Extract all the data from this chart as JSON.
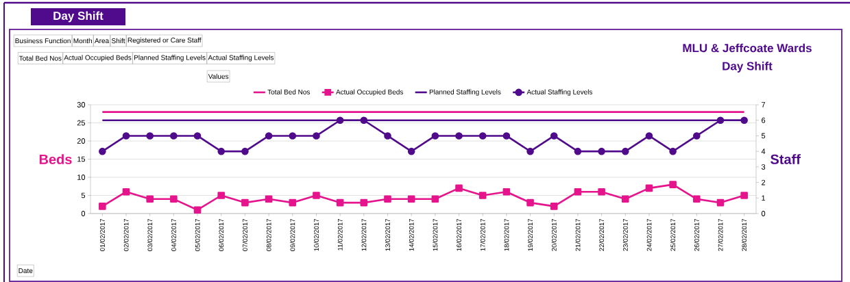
{
  "chart_data": {
    "type": "line",
    "title": "MLU & Jeffcoate Wards",
    "subtitle": "Day Shift",
    "ylabel": "Beds",
    "y2label": "Staff",
    "annotations": [
      "Day Shift",
      "Business Function",
      "Month",
      "Area",
      "Shift",
      "Registered or Care Staff",
      "Total Bed Nos",
      "Actual Occupied Beds",
      "Planned Staffing Levels",
      "Actual Staffing Levels",
      "Values",
      "Date"
    ],
    "categories": [
      "01/02/2017",
      "02/02/2017",
      "03/02/2017",
      "04/02/2017",
      "05/02/2017",
      "06/02/2017",
      "07/02/2017",
      "08/02/2017",
      "09/02/2017",
      "10/02/2017",
      "11/02/2017",
      "12/02/2017",
      "13/02/2017",
      "14/02/2017",
      "15/02/2017",
      "16/02/2017",
      "17/02/2017",
      "18/02/2017",
      "19/02/2017",
      "20/02/2017",
      "21/02/2017",
      "22/02/2017",
      "23/02/2017",
      "24/02/2017",
      "25/02/2017",
      "26/02/2017",
      "27/02/2017",
      "28/02/2017"
    ],
    "series": [
      {
        "name": "Total Bed Nos",
        "color": "#e6148c",
        "marker": "none",
        "values": [
          28,
          28,
          28,
          28,
          28,
          28,
          28,
          28,
          28,
          28,
          28,
          28,
          28,
          28,
          28,
          28,
          28,
          28,
          28,
          28,
          28,
          28,
          28,
          28,
          28,
          28,
          28,
          28
        ]
      },
      {
        "name": "Actual Occupied Beds",
        "color": "#e6148c",
        "marker": "square",
        "values": [
          2,
          6,
          4,
          4,
          1,
          5,
          3,
          4,
          3,
          5,
          3,
          3,
          4,
          4,
          4,
          7,
          5,
          6,
          3,
          2,
          6,
          6,
          4,
          7,
          8,
          4,
          3,
          5
        ]
      },
      {
        "name": "Planned Staffing Levels",
        "color": "#500a8c",
        "marker": "none",
        "axis": "y2",
        "values": [
          6,
          6,
          6,
          6,
          6,
          6,
          6,
          6,
          6,
          6,
          6,
          6,
          6,
          6,
          6,
          6,
          6,
          6,
          6,
          6,
          6,
          6,
          6,
          6,
          6,
          6,
          6,
          6
        ]
      },
      {
        "name": "Actual Staffing Levels",
        "color": "#500a8c",
        "marker": "circle",
        "axis": "y2",
        "values": [
          4,
          5,
          5,
          5,
          5,
          4,
          4,
          5,
          5,
          5,
          6,
          6,
          5,
          4,
          5,
          5,
          5,
          5,
          4,
          5,
          4,
          4,
          4,
          5,
          4,
          5,
          6,
          6
        ]
      }
    ],
    "ylim": [
      0,
      30
    ],
    "yticks": [
      0,
      5,
      10,
      15,
      20,
      25,
      30
    ],
    "y2lim": [
      0,
      7
    ],
    "y2ticks": [
      0,
      1,
      2,
      3,
      4,
      5,
      6,
      7
    ],
    "grid": "y",
    "legend": "top"
  }
}
